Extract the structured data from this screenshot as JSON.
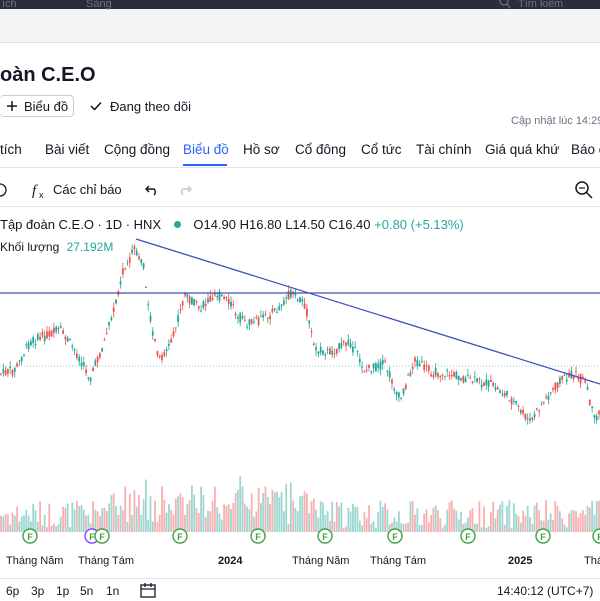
{
  "topbar": {
    "left_text": "ích",
    "mid_text": "Sàng",
    "search_placeholder": "Tìm kiếm"
  },
  "header": {
    "title": "oàn C.E.O",
    "chart_button": "Biểu đồ",
    "follow_button": "Đang theo dõi",
    "updated": "Cập nhật lúc  14:29"
  },
  "tabs": [
    "tích",
    "Bài viết",
    "Cộng đồng",
    "Biểu đồ",
    "Hồ sơ",
    "Cổ đông",
    "Cổ tức",
    "Tài chính",
    "Giá quá khứ",
    "Báo c"
  ],
  "active_tab": "Biểu đồ",
  "toolbar": {
    "indicators_label": "Các chỉ báo"
  },
  "legend": {
    "symbol": "Tập đoàn C.E.O · 1D · HNX",
    "open": "O14.90",
    "high": "H16.80",
    "low": "L14.50",
    "close": "C16.40",
    "change": "+0.80 (+5.13%)",
    "volume_label": "Khối lượng",
    "volume_value": "27.192M"
  },
  "colors": {
    "up": "#26a69a",
    "down": "#ef5350",
    "trendline": "#3f51b5",
    "accent": "#2962ff"
  },
  "chart_data": {
    "type": "candlestick",
    "x_ticks": [
      "Tháng Năm",
      "Tháng Tám",
      "2024",
      "Tháng Năm",
      "Tháng Tám",
      "2025",
      "Thá"
    ],
    "markers": [
      "F",
      "F",
      "F",
      "F",
      "F",
      "F",
      "F",
      "F",
      "F",
      "F"
    ]
  },
  "bottom": {
    "ranges": [
      "6p",
      "3p",
      "1p",
      "5n",
      "1n"
    ],
    "time": "14:40:12 (UTC+7)"
  }
}
